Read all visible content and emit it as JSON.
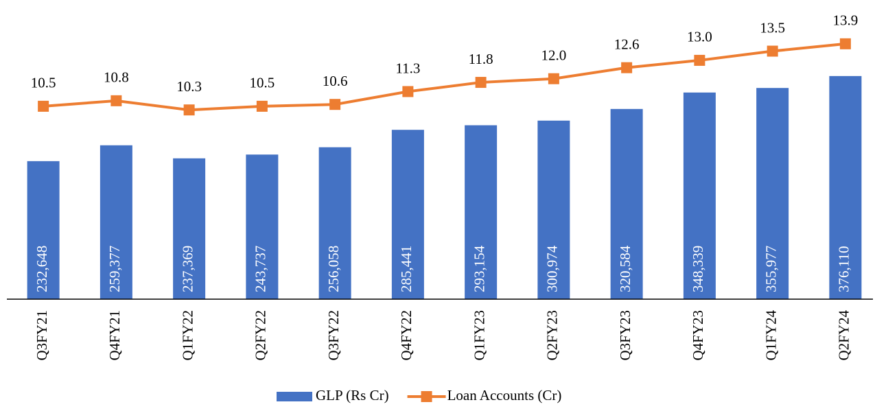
{
  "chart_data": {
    "type": "bar",
    "categories": [
      "Q3FY21",
      "Q4FY21",
      "Q1FY22",
      "Q2FY22",
      "Q3FY22",
      "Q4FY22",
      "Q1FY23",
      "Q2FY23",
      "Q3FY23",
      "Q4FY23",
      "Q1FY24",
      "Q2FY24"
    ],
    "series": [
      {
        "name": "GLP (Rs Cr)",
        "type": "bar",
        "color": "#4472c4",
        "values": [
          232648,
          259377,
          237369,
          243737,
          256058,
          285441,
          293154,
          300974,
          320584,
          348339,
          355977,
          376110
        ],
        "value_labels": [
          "232,648",
          "259,377",
          "237,369",
          "243,737",
          "256,058",
          "285,441",
          "293,154",
          "300,974",
          "320,584",
          "348,339",
          "355,977",
          "376,110"
        ]
      },
      {
        "name": "Loan Accounts (Cr)",
        "type": "line",
        "axis": "y2",
        "color": "#ed7d31",
        "values": [
          10.5,
          10.8,
          10.3,
          10.5,
          10.6,
          11.3,
          11.8,
          12.0,
          12.6,
          13.0,
          13.5,
          13.9
        ],
        "value_labels": [
          "10.5",
          "10.8",
          "10.3",
          "10.5",
          "10.6",
          "11.3",
          "11.8",
          "12.0",
          "12.6",
          "13.0",
          "13.5",
          "13.9"
        ]
      }
    ],
    "ylim": [
      0,
      480000
    ],
    "y2lim": [
      0,
      15.5
    ],
    "legend": "bottom"
  }
}
